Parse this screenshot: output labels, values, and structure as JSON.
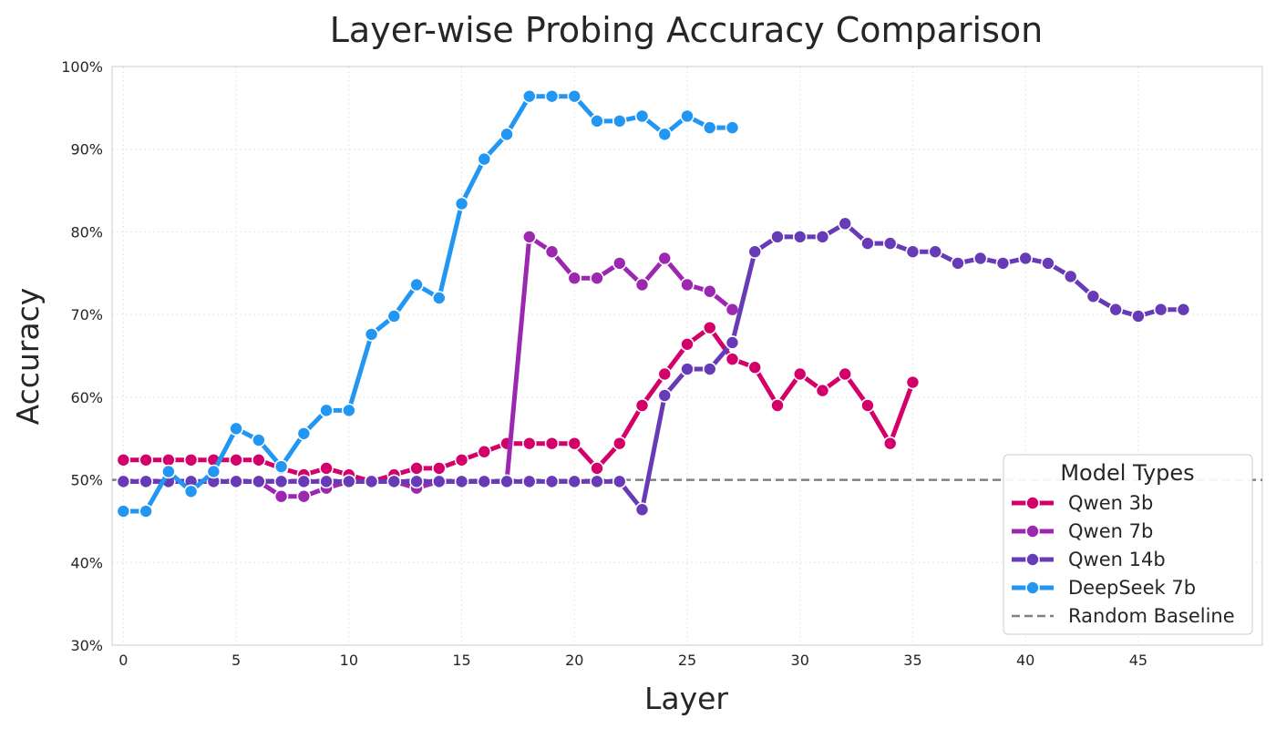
{
  "chart_data": {
    "type": "line",
    "title": "Layer-wise Probing Accuracy Comparison",
    "xlabel": "Layer",
    "ylabel": "Accuracy",
    "xlim": [
      -0.5,
      50.5
    ],
    "ylim": [
      0.3,
      1.0
    ],
    "x_ticks": [
      0,
      5,
      10,
      15,
      20,
      25,
      30,
      35,
      40,
      45
    ],
    "y_ticks": [
      0.3,
      0.4,
      0.5,
      0.6,
      0.7,
      0.8,
      0.9,
      1.0
    ],
    "y_tick_labels": [
      "30%",
      "40%",
      "50%",
      "60%",
      "70%",
      "80%",
      "90%",
      "100%"
    ],
    "grid": true,
    "legend": {
      "title": "Model Types",
      "placement": "lower-right"
    },
    "series": [
      {
        "name": "Qwen 3b",
        "color": "#d4006a",
        "x": [
          0,
          1,
          2,
          3,
          4,
          5,
          6,
          7,
          8,
          9,
          10,
          11,
          12,
          13,
          14,
          15,
          16,
          17,
          18,
          19,
          20,
          21,
          22,
          23,
          24,
          25,
          26,
          27,
          28,
          29,
          30,
          31,
          32,
          33,
          34,
          35
        ],
        "values": [
          0.524,
          0.524,
          0.524,
          0.524,
          0.524,
          0.524,
          0.524,
          0.514,
          0.506,
          0.514,
          0.506,
          0.498,
          0.506,
          0.514,
          0.514,
          0.524,
          0.534,
          0.544,
          0.544,
          0.544,
          0.544,
          0.514,
          0.544,
          0.59,
          0.628,
          0.664,
          0.684,
          0.646,
          0.636,
          0.59,
          0.628,
          0.608,
          0.628,
          0.59,
          0.544,
          0.618
        ]
      },
      {
        "name": "Qwen 7b",
        "color": "#9c27b0",
        "x": [
          0,
          1,
          2,
          3,
          4,
          5,
          6,
          7,
          8,
          9,
          10,
          11,
          12,
          13,
          14,
          15,
          16,
          17,
          18,
          19,
          20,
          21,
          22,
          23,
          24,
          25,
          26,
          27
        ],
        "values": [
          0.498,
          0.498,
          0.498,
          0.498,
          0.498,
          0.498,
          0.498,
          0.48,
          0.48,
          0.49,
          0.498,
          0.498,
          0.498,
          0.49,
          0.498,
          0.498,
          0.498,
          0.498,
          0.794,
          0.776,
          0.744,
          0.744,
          0.762,
          0.736,
          0.768,
          0.736,
          0.728,
          0.706
        ]
      },
      {
        "name": "Qwen 14b",
        "color": "#673ab7",
        "x": [
          0,
          1,
          2,
          3,
          4,
          5,
          6,
          7,
          8,
          9,
          10,
          11,
          12,
          13,
          14,
          15,
          16,
          17,
          18,
          19,
          20,
          21,
          22,
          23,
          24,
          25,
          26,
          27,
          28,
          29,
          30,
          31,
          32,
          33,
          34,
          35,
          36,
          37,
          38,
          39,
          40,
          41,
          42,
          43,
          44,
          45,
          46,
          47
        ],
        "values": [
          0.498,
          0.498,
          0.498,
          0.498,
          0.498,
          0.498,
          0.498,
          0.498,
          0.498,
          0.498,
          0.498,
          0.498,
          0.498,
          0.498,
          0.498,
          0.498,
          0.498,
          0.498,
          0.498,
          0.498,
          0.498,
          0.498,
          0.498,
          0.464,
          0.602,
          0.634,
          0.634,
          0.666,
          0.776,
          0.794,
          0.794,
          0.794,
          0.81,
          0.786,
          0.786,
          0.776,
          0.776,
          0.762,
          0.768,
          0.762,
          0.768,
          0.762,
          0.746,
          0.722,
          0.706,
          0.698,
          0.706,
          0.706
        ]
      },
      {
        "name": "DeepSeek 7b",
        "color": "#2196f3",
        "x": [
          0,
          1,
          2,
          3,
          4,
          5,
          6,
          7,
          8,
          9,
          10,
          11,
          12,
          13,
          14,
          15,
          16,
          17,
          18,
          19,
          20,
          21,
          22,
          23,
          24,
          25,
          26,
          27
        ],
        "values": [
          0.462,
          0.462,
          0.51,
          0.486,
          0.51,
          0.562,
          0.548,
          0.516,
          0.556,
          0.584,
          0.584,
          0.676,
          0.698,
          0.736,
          0.72,
          0.834,
          0.888,
          0.918,
          0.964,
          0.964,
          0.964,
          0.934,
          0.934,
          0.94,
          0.918,
          0.94,
          0.926,
          0.926
        ]
      }
    ],
    "baseline": {
      "name": "Random Baseline",
      "value": 0.5,
      "color": "#808080"
    }
  }
}
